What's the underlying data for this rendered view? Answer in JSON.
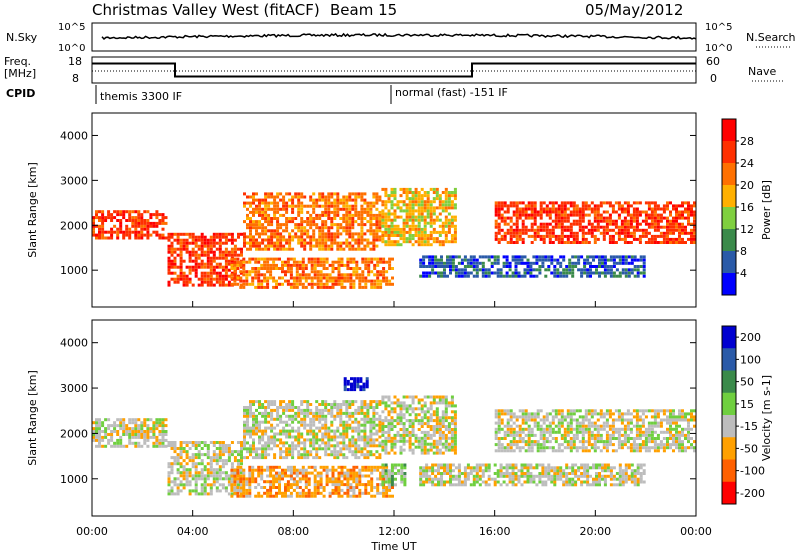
{
  "header": {
    "title": "Christmas Valley West (fitACF)",
    "beam": "Beam 15",
    "date": "05/May/2012"
  },
  "chart_data": [
    {
      "type": "line",
      "name_label": "N.Sky",
      "right_label": "N.Search",
      "left_ticks": [
        "10^5",
        "10^0"
      ],
      "right_ticks": [
        "10^5",
        "10^0"
      ]
    },
    {
      "type": "line",
      "left_label_1": "Freq.",
      "left_label_2": "[MHz]",
      "right_label": "Nave",
      "left_ticks": [
        "18",
        "8"
      ],
      "right_ticks": [
        "60",
        "0"
      ],
      "freq_steps": [
        {
          "t": 0.0,
          "v": 15.5
        },
        {
          "t": 3.3,
          "v": 10.5
        },
        {
          "t": 15.1,
          "v": 15.5
        },
        {
          "t": 24.0,
          "v": 15.5
        }
      ]
    },
    {
      "type": "table",
      "label": "CPID",
      "entries": [
        {
          "t": 0.0,
          "text": "themis 3300 IF"
        },
        {
          "t": 12.0,
          "text": "normal (fast) -151 IF"
        }
      ]
    },
    {
      "type": "heatmap",
      "quantity": "Power",
      "ylabel": "Slant Range [km]",
      "yticks": [
        "1000",
        "2000",
        "3000",
        "4000"
      ],
      "ylim": [
        180,
        4500
      ],
      "xlim": [
        0,
        24
      ],
      "colorbar_label": "Power [dB]",
      "colorbar_ticks": [
        "4",
        "8",
        "12",
        "16",
        "20",
        "24",
        "28"
      ],
      "colors": [
        "#0000ff",
        "#2a5aa8",
        "#3a8a4a",
        "#7fcf3f",
        "#ffb000",
        "#ff7000",
        "#ff3000",
        "#ff0000"
      ],
      "bands": [
        {
          "t0": 0.0,
          "t1": 3.0,
          "r0": 1750,
          "r1": 2400,
          "level": 6
        },
        {
          "t0": 3.0,
          "t1": 6.0,
          "r0": 700,
          "r1": 1900,
          "level": 6
        },
        {
          "t0": 6.0,
          "t1": 11.5,
          "r0": 1500,
          "r1": 2800,
          "level": 5
        },
        {
          "t0": 5.5,
          "t1": 12.0,
          "r0": 650,
          "r1": 1350,
          "level": 5
        },
        {
          "t0": 11.5,
          "t1": 14.5,
          "r0": 1600,
          "r1": 2900,
          "level": 4
        },
        {
          "t0": 16.0,
          "t1": 24.0,
          "r0": 1650,
          "r1": 2600,
          "level": 6
        },
        {
          "t0": 13.0,
          "t1": 22.0,
          "r0": 900,
          "r1": 1400,
          "level": 1
        }
      ]
    },
    {
      "type": "heatmap",
      "quantity": "Velocity",
      "ylabel": "Slant Range [km]",
      "yticks": [
        "1000",
        "2000",
        "3000",
        "4000"
      ],
      "ylim": [
        180,
        4500
      ],
      "xlim": [
        0,
        24
      ],
      "colorbar_label": "Velocity [m s-1]",
      "colorbar_ticks": [
        "200",
        "100",
        "50",
        "15",
        "-15",
        "-50",
        "-100",
        "-200"
      ],
      "colors": [
        "#0000d0",
        "#2a5aa8",
        "#3a8a4a",
        "#6fcf3f",
        "#bdbdbd",
        "#ffa000",
        "#ff6000",
        "#ff0000"
      ],
      "bands": [
        {
          "t0": 0.0,
          "t1": 3.0,
          "r0": 1750,
          "r1": 2400,
          "level": 4
        },
        {
          "t0": 3.0,
          "t1": 6.0,
          "r0": 700,
          "r1": 1900,
          "level": 4
        },
        {
          "t0": 6.0,
          "t1": 11.5,
          "r0": 1500,
          "r1": 2800,
          "level": 4
        },
        {
          "t0": 5.5,
          "t1": 12.0,
          "r0": 650,
          "r1": 1350,
          "level": 5
        },
        {
          "t0": 11.5,
          "t1": 14.5,
          "r0": 1600,
          "r1": 2900,
          "level": 4
        },
        {
          "t0": 16.0,
          "t1": 24.0,
          "r0": 1650,
          "r1": 2600,
          "level": 4
        },
        {
          "t0": 13.0,
          "t1": 22.0,
          "r0": 900,
          "r1": 1400,
          "level": 4
        },
        {
          "t0": 10.0,
          "t1": 11.0,
          "r0": 3000,
          "r1": 3300,
          "level": 0
        },
        {
          "t0": 11.5,
          "t1": 12.5,
          "r0": 900,
          "r1": 1400,
          "level": 3
        }
      ]
    }
  ],
  "xaxis": {
    "label": "Time UT",
    "ticks": [
      "00:00",
      "04:00",
      "08:00",
      "12:00",
      "16:00",
      "20:00",
      "00:00"
    ]
  }
}
